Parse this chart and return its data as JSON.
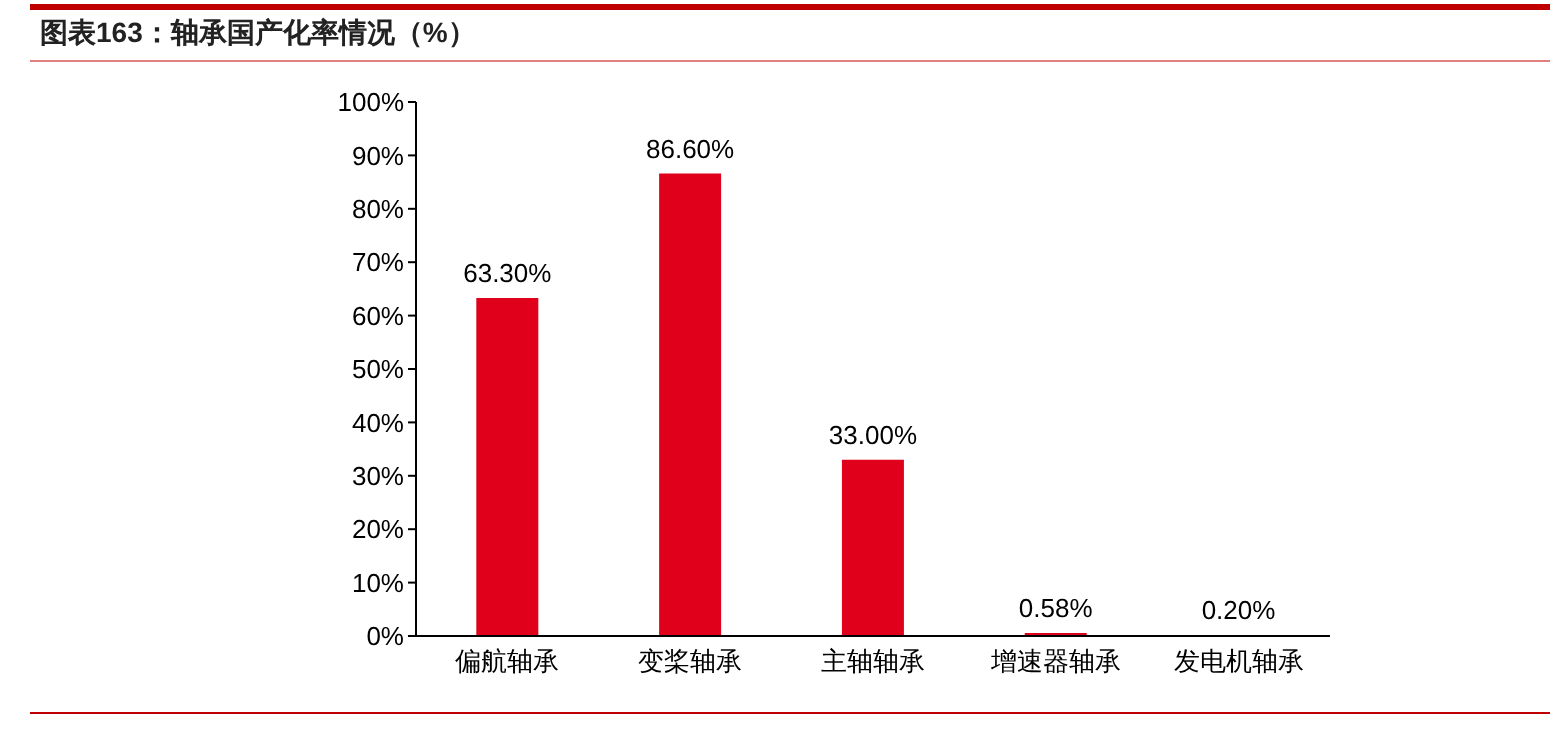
{
  "chart_data": {
    "type": "bar",
    "title": "图表163：轴承国产化率情况（%）",
    "categories": [
      "偏航轴承",
      "变桨轴承",
      "主轴轴承",
      "增速器轴承",
      "发电机轴承"
    ],
    "values": [
      63.3,
      86.6,
      33.0,
      0.58,
      0.2
    ],
    "value_labels": [
      "63.30%",
      "86.60%",
      "33.00%",
      "0.58%",
      "0.20%"
    ],
    "color": "#e0001b",
    "ylim": [
      0,
      100
    ],
    "yticks": [
      {
        "value": 0,
        "label": "0%"
      },
      {
        "value": 10,
        "label": "10%"
      },
      {
        "value": 20,
        "label": "20%"
      },
      {
        "value": 30,
        "label": "30%"
      },
      {
        "value": 40,
        "label": "40%"
      },
      {
        "value": 50,
        "label": "50%"
      },
      {
        "value": 60,
        "label": "60%"
      },
      {
        "value": 70,
        "label": "70%"
      },
      {
        "value": 80,
        "label": "80%"
      },
      {
        "value": 90,
        "label": "90%"
      },
      {
        "value": 100,
        "label": "100%"
      }
    ],
    "grid": false,
    "legend": false
  }
}
